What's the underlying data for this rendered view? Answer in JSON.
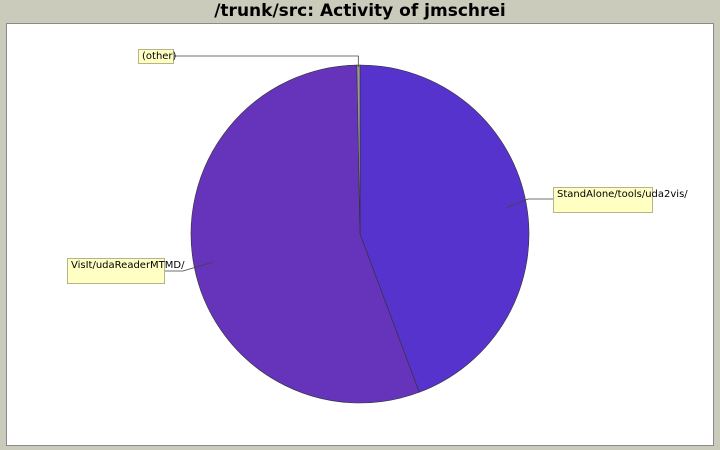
{
  "chart_data": {
    "type": "pie",
    "title": "/trunk/src: Activity of jmschrei",
    "slices": [
      {
        "label": "StandAlone/tools/uda2vis/",
        "value": 44.3,
        "color": "#5633cc"
      },
      {
        "label": "VisIt/udaReaderMTMD/",
        "value": 55.4,
        "color": "#6633bb"
      },
      {
        "label": "(other)",
        "value": 0.3,
        "color": "#999999"
      }
    ]
  }
}
